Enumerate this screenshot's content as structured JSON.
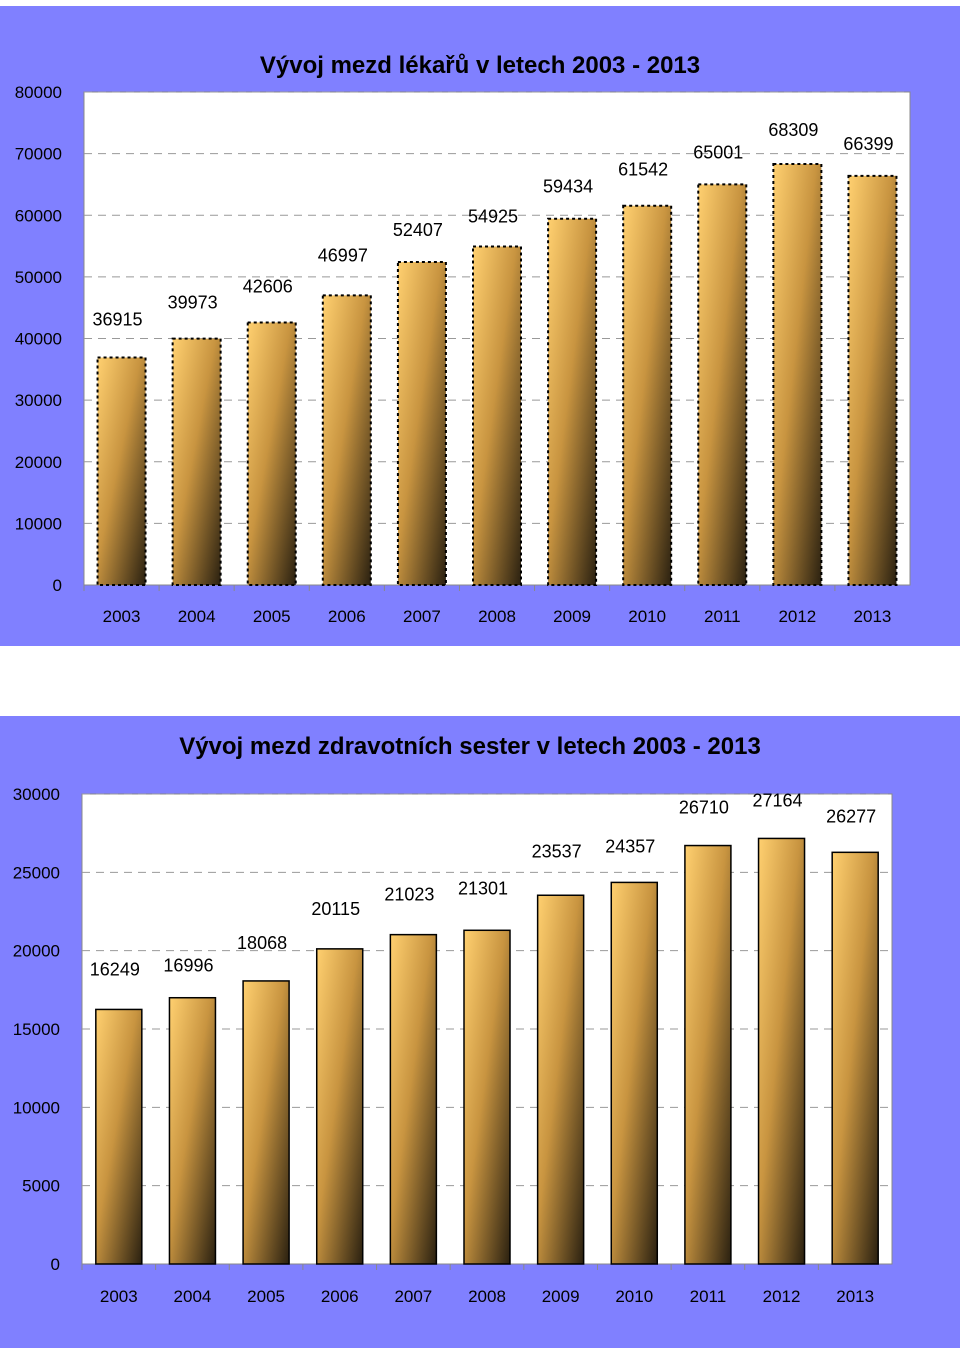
{
  "chart_data": [
    {
      "type": "bar",
      "title": "Vývoj mezd lékařů v letech 2003 - 2013",
      "categories": [
        "2003",
        "2004",
        "2005",
        "2006",
        "2007",
        "2008",
        "2009",
        "2010",
        "2011",
        "2012",
        "2013"
      ],
      "values": [
        36915,
        39973,
        42606,
        46997,
        52407,
        54925,
        59434,
        61542,
        65001,
        68309,
        66399
      ],
      "data_labels": [
        "36915",
        "39973",
        "42606",
        "46997",
        "52407",
        "54925",
        "59434",
        "61542",
        "65001",
        "68309",
        "66399"
      ],
      "yticks": [
        "0",
        "10000",
        "20000",
        "30000",
        "40000",
        "50000",
        "60000",
        "70000",
        "80000"
      ],
      "ylim": [
        0,
        80000
      ],
      "grid": true,
      "bar_border": "dashed",
      "colors": {
        "background": "#8080ff",
        "plot": "#ffffff",
        "bar_top": "#ffd070",
        "bar_bottom": "#2a2010",
        "grid": "#999999"
      }
    },
    {
      "type": "bar",
      "title": "Vývoj mezd zdravotních sester v letech 2003 - 2013",
      "categories": [
        "2003",
        "2004",
        "2005",
        "2006",
        "2007",
        "2008",
        "2009",
        "2010",
        "2011",
        "2012",
        "2013"
      ],
      "values": [
        16249,
        16996,
        18068,
        20115,
        21023,
        21301,
        23537,
        24357,
        26710,
        27164,
        26277
      ],
      "data_labels": [
        "16249",
        "16996",
        "18068",
        "20115",
        "21023",
        "21301",
        "23537",
        "24357",
        "26710",
        "27164",
        "26277"
      ],
      "yticks": [
        "0",
        "5000",
        "10000",
        "15000",
        "20000",
        "25000",
        "30000"
      ],
      "ylim": [
        0,
        30000
      ],
      "grid": true,
      "bar_border": "solid",
      "colors": {
        "background": "#8080ff",
        "plot": "#ffffff",
        "bar_top": "#ffd070",
        "bar_bottom": "#2a2010",
        "grid": "#999999"
      }
    }
  ]
}
